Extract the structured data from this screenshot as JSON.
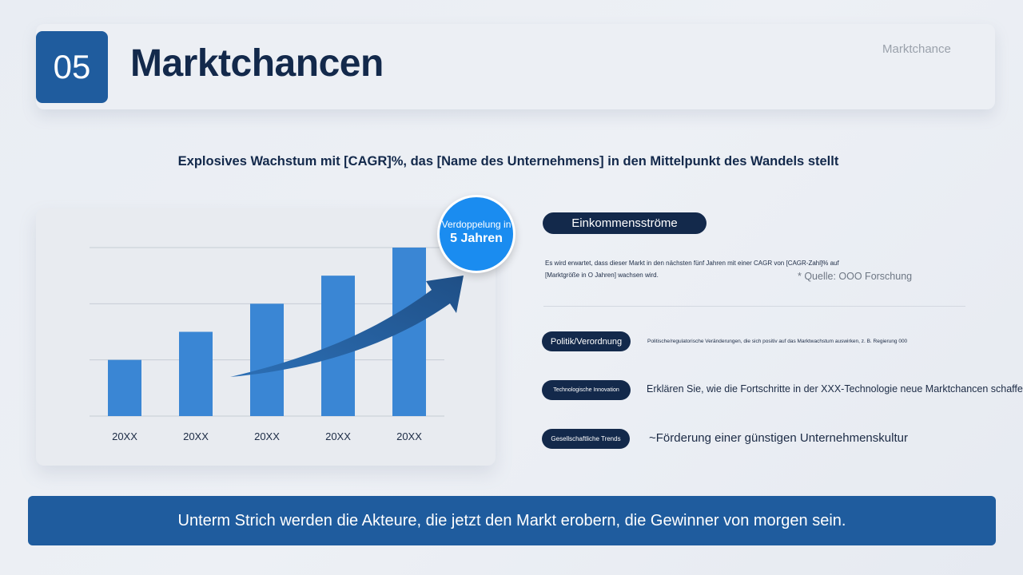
{
  "header": {
    "number": "05",
    "title": "Marktchancen",
    "tag": "Marktchance"
  },
  "subtitle": "Explosives Wachstum mit [CAGR]%, das [Name des Unternehmens] in den Mittelpunkt des Wandels stellt",
  "badge": {
    "line1": "Verdoppelung in",
    "line2": "5 Jahren"
  },
  "chart_data": {
    "type": "bar",
    "categories": [
      "20XX",
      "20XX",
      "20XX",
      "20XX",
      "20XX"
    ],
    "values": [
      1,
      1.5,
      2,
      2.5,
      3
    ],
    "ylim": [
      0,
      3
    ],
    "grid": true,
    "bar_color": "#3a86d4",
    "arrow_color": "#1f4f86",
    "title": "",
    "xlabel": "",
    "ylabel": ""
  },
  "right": {
    "income_label": "Einkommensströme",
    "income_text_line1": "Es wird erwartet, dass dieser Markt in den nächsten fünf Jahren mit einer CAGR von [CAGR-Zahl]% auf",
    "income_text_line2": "[Marktgröße in O Jahren] wachsen wird.",
    "source": "* Quelle: OOO Forschung",
    "items": [
      {
        "label": "Politik/Verordnung",
        "text": "Politische/regulatorische Veränderungen, die sich positiv auf das Marktwachstum auswirken, z. B. Regierung 000"
      },
      {
        "label": "Technologische Innovation",
        "text": "Erklären Sie, wie die Fortschritte in der XXX-Technologie neue Marktchancen schaffen"
      },
      {
        "label": "Gesellschaftliche Trends",
        "text": "~Förderung einer günstigen Unternehmenskultur"
      }
    ]
  },
  "footer": "Unterm Strich werden die Akteure, die jetzt den Markt erobern, die Gewinner von morgen sein.",
  "colors": {
    "primary": "#1f5c9e",
    "dark_navy": "#13294b",
    "badge_blue": "#1a8cf0"
  }
}
